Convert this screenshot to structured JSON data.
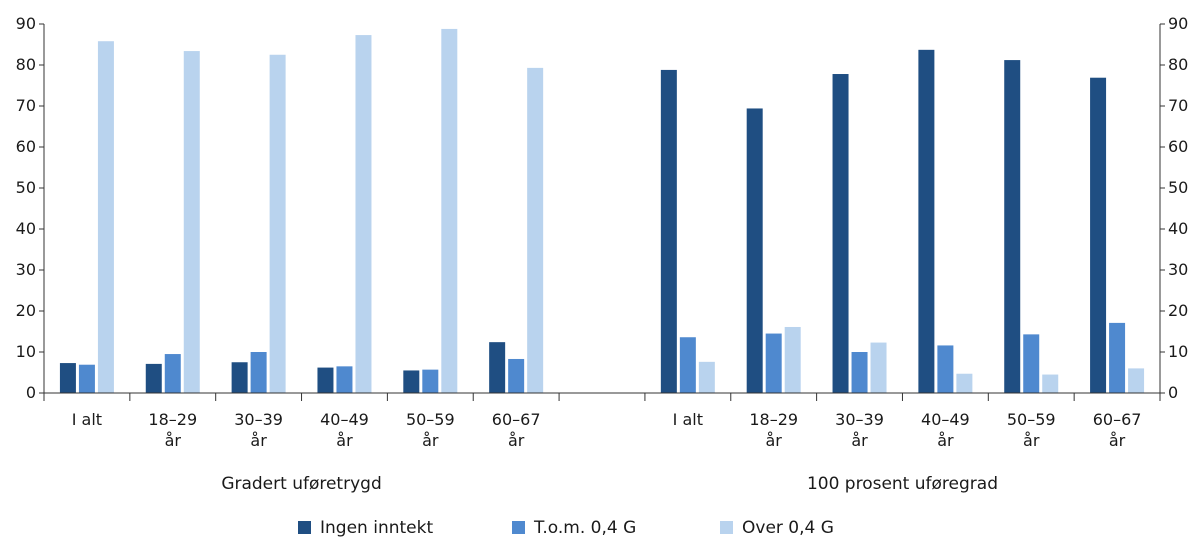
{
  "chart_data": {
    "type": "bar",
    "groups": [
      {
        "label": "Gradert uføretrygd",
        "categories": [
          [
            "I alt"
          ],
          [
            "18–29",
            "år"
          ],
          [
            "30–39",
            "år"
          ],
          [
            "40–49",
            "år"
          ],
          [
            "50–59",
            "år"
          ],
          [
            "60–67",
            "år"
          ]
        ],
        "series": [
          {
            "name": "Ingen inntekt",
            "values": [
              7.3,
              7.1,
              7.5,
              6.2,
              5.5,
              12.4
            ]
          },
          {
            "name": "T.o.m. 0,4 G",
            "values": [
              6.9,
              9.5,
              10.0,
              6.5,
              5.7,
              8.3
            ]
          },
          {
            "name": "Over 0,4 G",
            "values": [
              85.8,
              83.4,
              82.5,
              87.3,
              88.8,
              79.3
            ]
          }
        ]
      },
      {
        "label": "100 prosent uføregrad",
        "categories": [
          [
            "I alt"
          ],
          [
            "18–29",
            "år"
          ],
          [
            "30–39",
            "år"
          ],
          [
            "40–49",
            "år"
          ],
          [
            "50–59",
            "år"
          ],
          [
            "60–67",
            "år"
          ]
        ],
        "series": [
          {
            "name": "Ingen inntekt",
            "values": [
              78.8,
              69.4,
              77.8,
              83.7,
              81.2,
              76.9
            ]
          },
          {
            "name": "T.o.m. 0,4 G",
            "values": [
              13.6,
              14.5,
              10.0,
              11.6,
              14.3,
              17.1
            ]
          },
          {
            "name": "Over 0,4 G",
            "values": [
              7.6,
              16.1,
              12.3,
              4.7,
              4.5,
              6.0
            ]
          }
        ]
      }
    ],
    "legend": [
      {
        "name": "Ingen inntekt",
        "color": "#1f4e82"
      },
      {
        "name": "T.o.m. 0,4 G",
        "color": "#4f89cf"
      },
      {
        "name": "Over 0,4 G",
        "color": "#b9d3ee"
      }
    ],
    "y_axis": {
      "min": 0,
      "max": 90,
      "step": 10,
      "ticks": [
        "0",
        "10",
        "20",
        "30",
        "40",
        "50",
        "60",
        "70",
        "80",
        "90"
      ],
      "left_and_right": true
    },
    "grid": false,
    "legend_position": "bottom"
  }
}
